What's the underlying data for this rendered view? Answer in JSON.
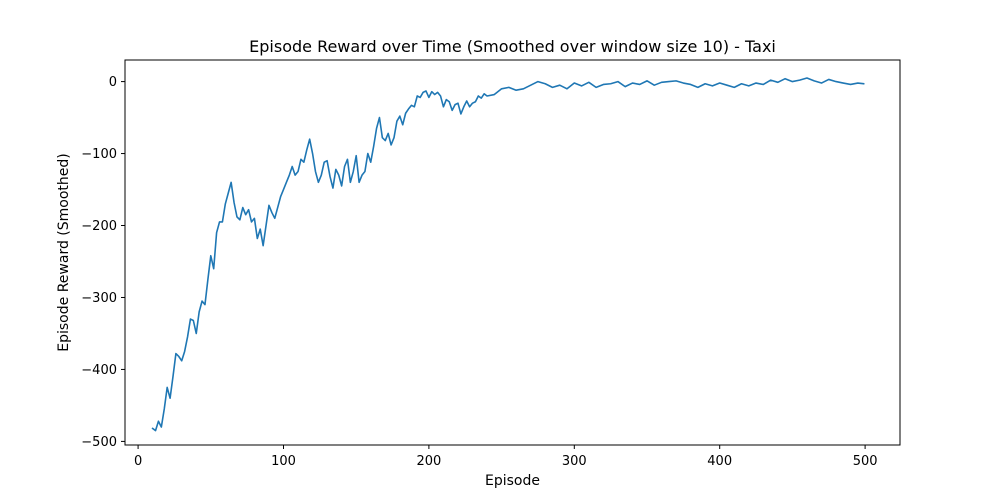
{
  "chart_data": {
    "type": "line",
    "title": "Episode Reward over Time (Smoothed over window size 10) - Taxi",
    "xlabel": "Episode",
    "ylabel": "Episode Reward (Smoothed)",
    "xlim": [
      -9,
      524
    ],
    "ylim": [
      -505,
      30
    ],
    "xticks": [
      0,
      100,
      200,
      300,
      400,
      500
    ],
    "yticks": [
      0,
      -100,
      -200,
      -300,
      -400,
      -500
    ],
    "xtick_labels": [
      "0",
      "100",
      "200",
      "300",
      "400",
      "500"
    ],
    "ytick_labels": [
      "0",
      "−100",
      "−200",
      "−300",
      "−400",
      "−500"
    ],
    "grid": false,
    "legend": "none",
    "series": [
      {
        "color": "#1f77b4",
        "x": [
          10,
          12,
          14,
          16,
          18,
          20,
          22,
          24,
          26,
          28,
          30,
          32,
          34,
          36,
          38,
          40,
          42,
          44,
          46,
          48,
          50,
          52,
          54,
          56,
          58,
          60,
          62,
          64,
          66,
          68,
          70,
          72,
          74,
          76,
          78,
          80,
          82,
          84,
          86,
          88,
          90,
          92,
          94,
          96,
          98,
          100,
          102,
          104,
          106,
          108,
          110,
          112,
          114,
          116,
          118,
          120,
          122,
          124,
          126,
          128,
          130,
          132,
          134,
          136,
          138,
          140,
          142,
          144,
          146,
          148,
          150,
          152,
          154,
          156,
          158,
          160,
          162,
          164,
          166,
          168,
          170,
          172,
          174,
          176,
          178,
          180,
          182,
          184,
          186,
          188,
          190,
          192,
          194,
          196,
          198,
          200,
          202,
          204,
          206,
          208,
          210,
          212,
          214,
          216,
          218,
          220,
          222,
          224,
          226,
          228,
          230,
          232,
          234,
          236,
          238,
          240,
          245,
          250,
          255,
          260,
          265,
          270,
          275,
          280,
          285,
          290,
          295,
          300,
          305,
          310,
          315,
          320,
          325,
          330,
          335,
          340,
          345,
          350,
          355,
          360,
          365,
          370,
          375,
          380,
          385,
          390,
          395,
          400,
          405,
          410,
          415,
          420,
          425,
          430,
          435,
          440,
          445,
          450,
          455,
          460,
          465,
          470,
          475,
          480,
          485,
          490,
          495,
          499
        ],
        "y": [
          -482,
          -485,
          -472,
          -480,
          -455,
          -425,
          -440,
          -410,
          -378,
          -382,
          -388,
          -375,
          -355,
          -330,
          -332,
          -350,
          -320,
          -305,
          -310,
          -275,
          -242,
          -260,
          -210,
          -195,
          -195,
          -170,
          -155,
          -140,
          -168,
          -188,
          -192,
          -175,
          -185,
          -178,
          -195,
          -190,
          -218,
          -205,
          -228,
          -200,
          -172,
          -182,
          -190,
          -175,
          -160,
          -150,
          -140,
          -130,
          -118,
          -130,
          -125,
          -108,
          -112,
          -95,
          -80,
          -100,
          -125,
          -140,
          -130,
          -112,
          -110,
          -132,
          -148,
          -122,
          -130,
          -145,
          -118,
          -108,
          -140,
          -125,
          -103,
          -140,
          -130,
          -125,
          -100,
          -112,
          -90,
          -65,
          -50,
          -78,
          -82,
          -72,
          -88,
          -78,
          -55,
          -48,
          -60,
          -44,
          -38,
          -33,
          -35,
          -20,
          -22,
          -15,
          -13,
          -22,
          -14,
          -18,
          -15,
          -20,
          -35,
          -25,
          -28,
          -40,
          -32,
          -30,
          -45,
          -35,
          -27,
          -35,
          -30,
          -28,
          -20,
          -23,
          -17,
          -20,
          -18,
          -10,
          -8,
          -12,
          -10,
          -5,
          0,
          -3,
          -8,
          -5,
          -10,
          -2,
          -6,
          -1,
          -8,
          -4,
          -3,
          0,
          -7,
          -2,
          -4,
          1,
          -5,
          -1,
          0,
          1,
          -2,
          -4,
          -8,
          -3,
          -6,
          -2,
          -5,
          -8,
          -3,
          -6,
          -2,
          -4,
          2,
          -1,
          4,
          0,
          2,
          5,
          1,
          -2,
          3,
          0,
          -2,
          -4,
          -2,
          -3
        ]
      }
    ]
  }
}
